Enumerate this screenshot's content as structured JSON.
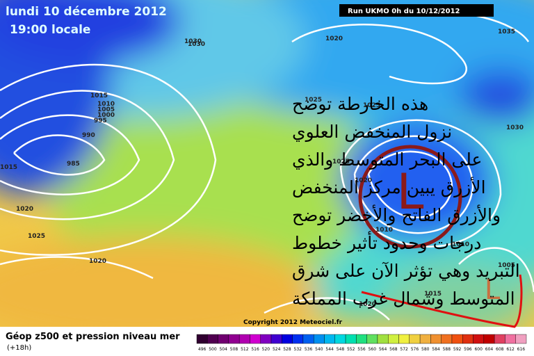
{
  "header": {
    "date": "lundi 10 décembre 2012",
    "time": "19:00 locale",
    "run": "Run UKMO 0h du 10/12/2012"
  },
  "annotation": {
    "lines": [
      "هذه الخارطة توضح",
      "نزول المنخفض العلوي",
      "على البحر المتوسط والذي",
      "الأزرق يبين مركز المنخفض",
      "والأزرق الفاتح والأخضر توضح",
      "درجات وحدود تأثير خطوط",
      "التبريد وهي تؤثر الآن على شرق",
      "المتوسط وشمال غرب المملكة"
    ],
    "low_marks": [
      "L",
      "L"
    ]
  },
  "isobar_labels": [
    "1030",
    "1020",
    "1035",
    "1015",
    "1010",
    "1005",
    "1000",
    "995",
    "990",
    "985",
    "1015",
    "1025",
    "1025",
    "1025",
    "1030",
    "1020",
    "1020",
    "1025",
    "1020",
    "1010",
    "1010",
    "1005",
    "1015",
    "1020",
    "1030"
  ],
  "footer": {
    "copyright": "Copyright 2012 Meteociel.fr",
    "title": "Géop z500 et pression niveau mer",
    "lead": "(+18h)"
  },
  "legend": {
    "labels": [
      "496",
      "500",
      "504",
      "508",
      "512",
      "516",
      "520",
      "524",
      "528",
      "532",
      "536",
      "540",
      "544",
      "548",
      "552",
      "556",
      "560",
      "564",
      "568",
      "572",
      "576",
      "580",
      "584",
      "588",
      "592",
      "596",
      "600",
      "604",
      "608",
      "612",
      "616"
    ],
    "colors": [
      "#300030",
      "#500050",
      "#700070",
      "#900090",
      "#b000b0",
      "#d000d0",
      "#8000c0",
      "#4000d0",
      "#0000e0",
      "#0030f0",
      "#0060f0",
      "#0090f0",
      "#00b8f0",
      "#00d8e0",
      "#00e0b0",
      "#20e080",
      "#60e060",
      "#a0e040",
      "#d0f040",
      "#f0f040",
      "#f0d040",
      "#f0b040",
      "#f09030",
      "#f07020",
      "#f05010",
      "#e03010",
      "#d01010",
      "#c00000",
      "#e04060",
      "#f070a0",
      "#f0a0c0"
    ]
  }
}
